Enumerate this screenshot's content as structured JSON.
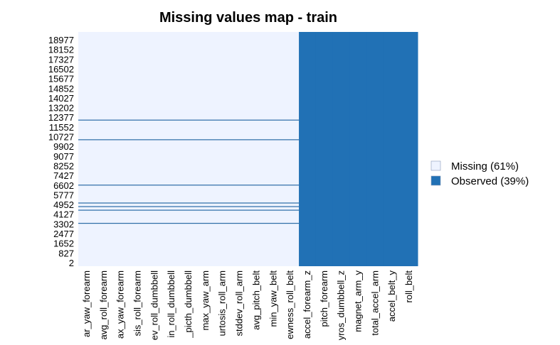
{
  "chart_data": {
    "type": "heatmap",
    "title": "Missing values map - train",
    "xlabel": "",
    "ylabel": "",
    "columns": [
      "var_yaw_forearm",
      "avg_roll_forearm",
      "max_yaw_forearm",
      "kurtosis_roll_forearm",
      "stddev_roll_dumbbell",
      "min_roll_dumbbell",
      "max_picth_dumbbell",
      "max_yaw_arm",
      "kurtosis_roll_arm",
      "stddev_roll_arm",
      "avg_pitch_belt",
      "min_yaw_belt",
      "skewness_roll_belt",
      "accel_forearm_z",
      "pitch_forearm",
      "gyros_dumbbell_z",
      "magnet_arm_y",
      "total_accel_arm",
      "accel_belt_y",
      "roll_belt"
    ],
    "visible_column_labels": [
      "ar_yaw_forearm",
      "avg_roll_forearm",
      "ax_yaw_forearm",
      "sis_roll_forearm",
      "ev_roll_dumbbell",
      "in_roll_dumbbell",
      "_picth_dumbbell",
      "max_yaw_arm",
      "urtosis_roll_arm",
      "stddev_roll_arm",
      "avg_pitch_belt",
      "min_yaw_belt",
      "ewness_roll_belt",
      "accel_forearm_z",
      "pitch_forearm",
      "yros_dumbbell_z",
      "magnet_arm_y",
      "total_accel_arm",
      "accel_belt_y",
      "roll_belt"
    ],
    "row_tick_labels": [
      "18977",
      "18152",
      "17327",
      "16502",
      "15677",
      "14852",
      "14027",
      "13202",
      "12377",
      "11552",
      "10727",
      "9902",
      "9077",
      "8252",
      "7427",
      "6602",
      "5777",
      "4952",
      "4127",
      "3302",
      "2477",
      "1652",
      "827",
      "2"
    ],
    "row_range": [
      2,
      19622
    ],
    "missing_columns_count": 13,
    "observed_columns_count": 7,
    "observed_rows_in_missing_columns": [
      12245,
      10600,
      6800,
      5300,
      5000,
      4700,
      3600
    ],
    "legend": [
      {
        "label": "Missing (61%)",
        "color": "#eef3ff"
      },
      {
        "label": "Observed (39%)",
        "color": "#2171b5"
      }
    ],
    "legend_position": "right",
    "colors": {
      "missing": "#eef3ff",
      "observed": "#2171b5",
      "stripe": "#2b6ba6"
    }
  }
}
